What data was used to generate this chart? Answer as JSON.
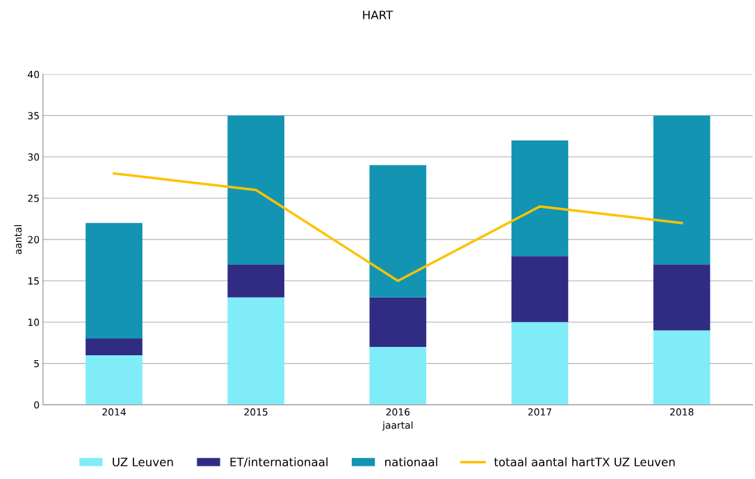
{
  "chart_data": {
    "type": "bar",
    "stacked": true,
    "title": "HART",
    "xlabel": "jaartal",
    "ylabel": "aantal",
    "categories": [
      "2014",
      "2015",
      "2016",
      "2017",
      "2018"
    ],
    "series": [
      {
        "name": "UZ Leuven",
        "color": "#80ecf8",
        "values": [
          6,
          13,
          7,
          10,
          9
        ]
      },
      {
        "name": "ET/internationaal",
        "color": "#312c83",
        "values": [
          2,
          4,
          6,
          8,
          8
        ]
      },
      {
        "name": "nationaal",
        "color": "#1294b2",
        "values": [
          14,
          18,
          16,
          14,
          18
        ]
      },
      {
        "name": "totaal aantal hartTX UZ Leuven",
        "type": "line",
        "color": "#fcc200",
        "values": [
          28,
          26,
          15,
          24,
          22
        ]
      }
    ],
    "ylim": [
      0,
      40
    ],
    "yticks": [
      0,
      5,
      10,
      15,
      20,
      25,
      30,
      35,
      40
    ],
    "grid": "y",
    "legend": "bottom"
  }
}
